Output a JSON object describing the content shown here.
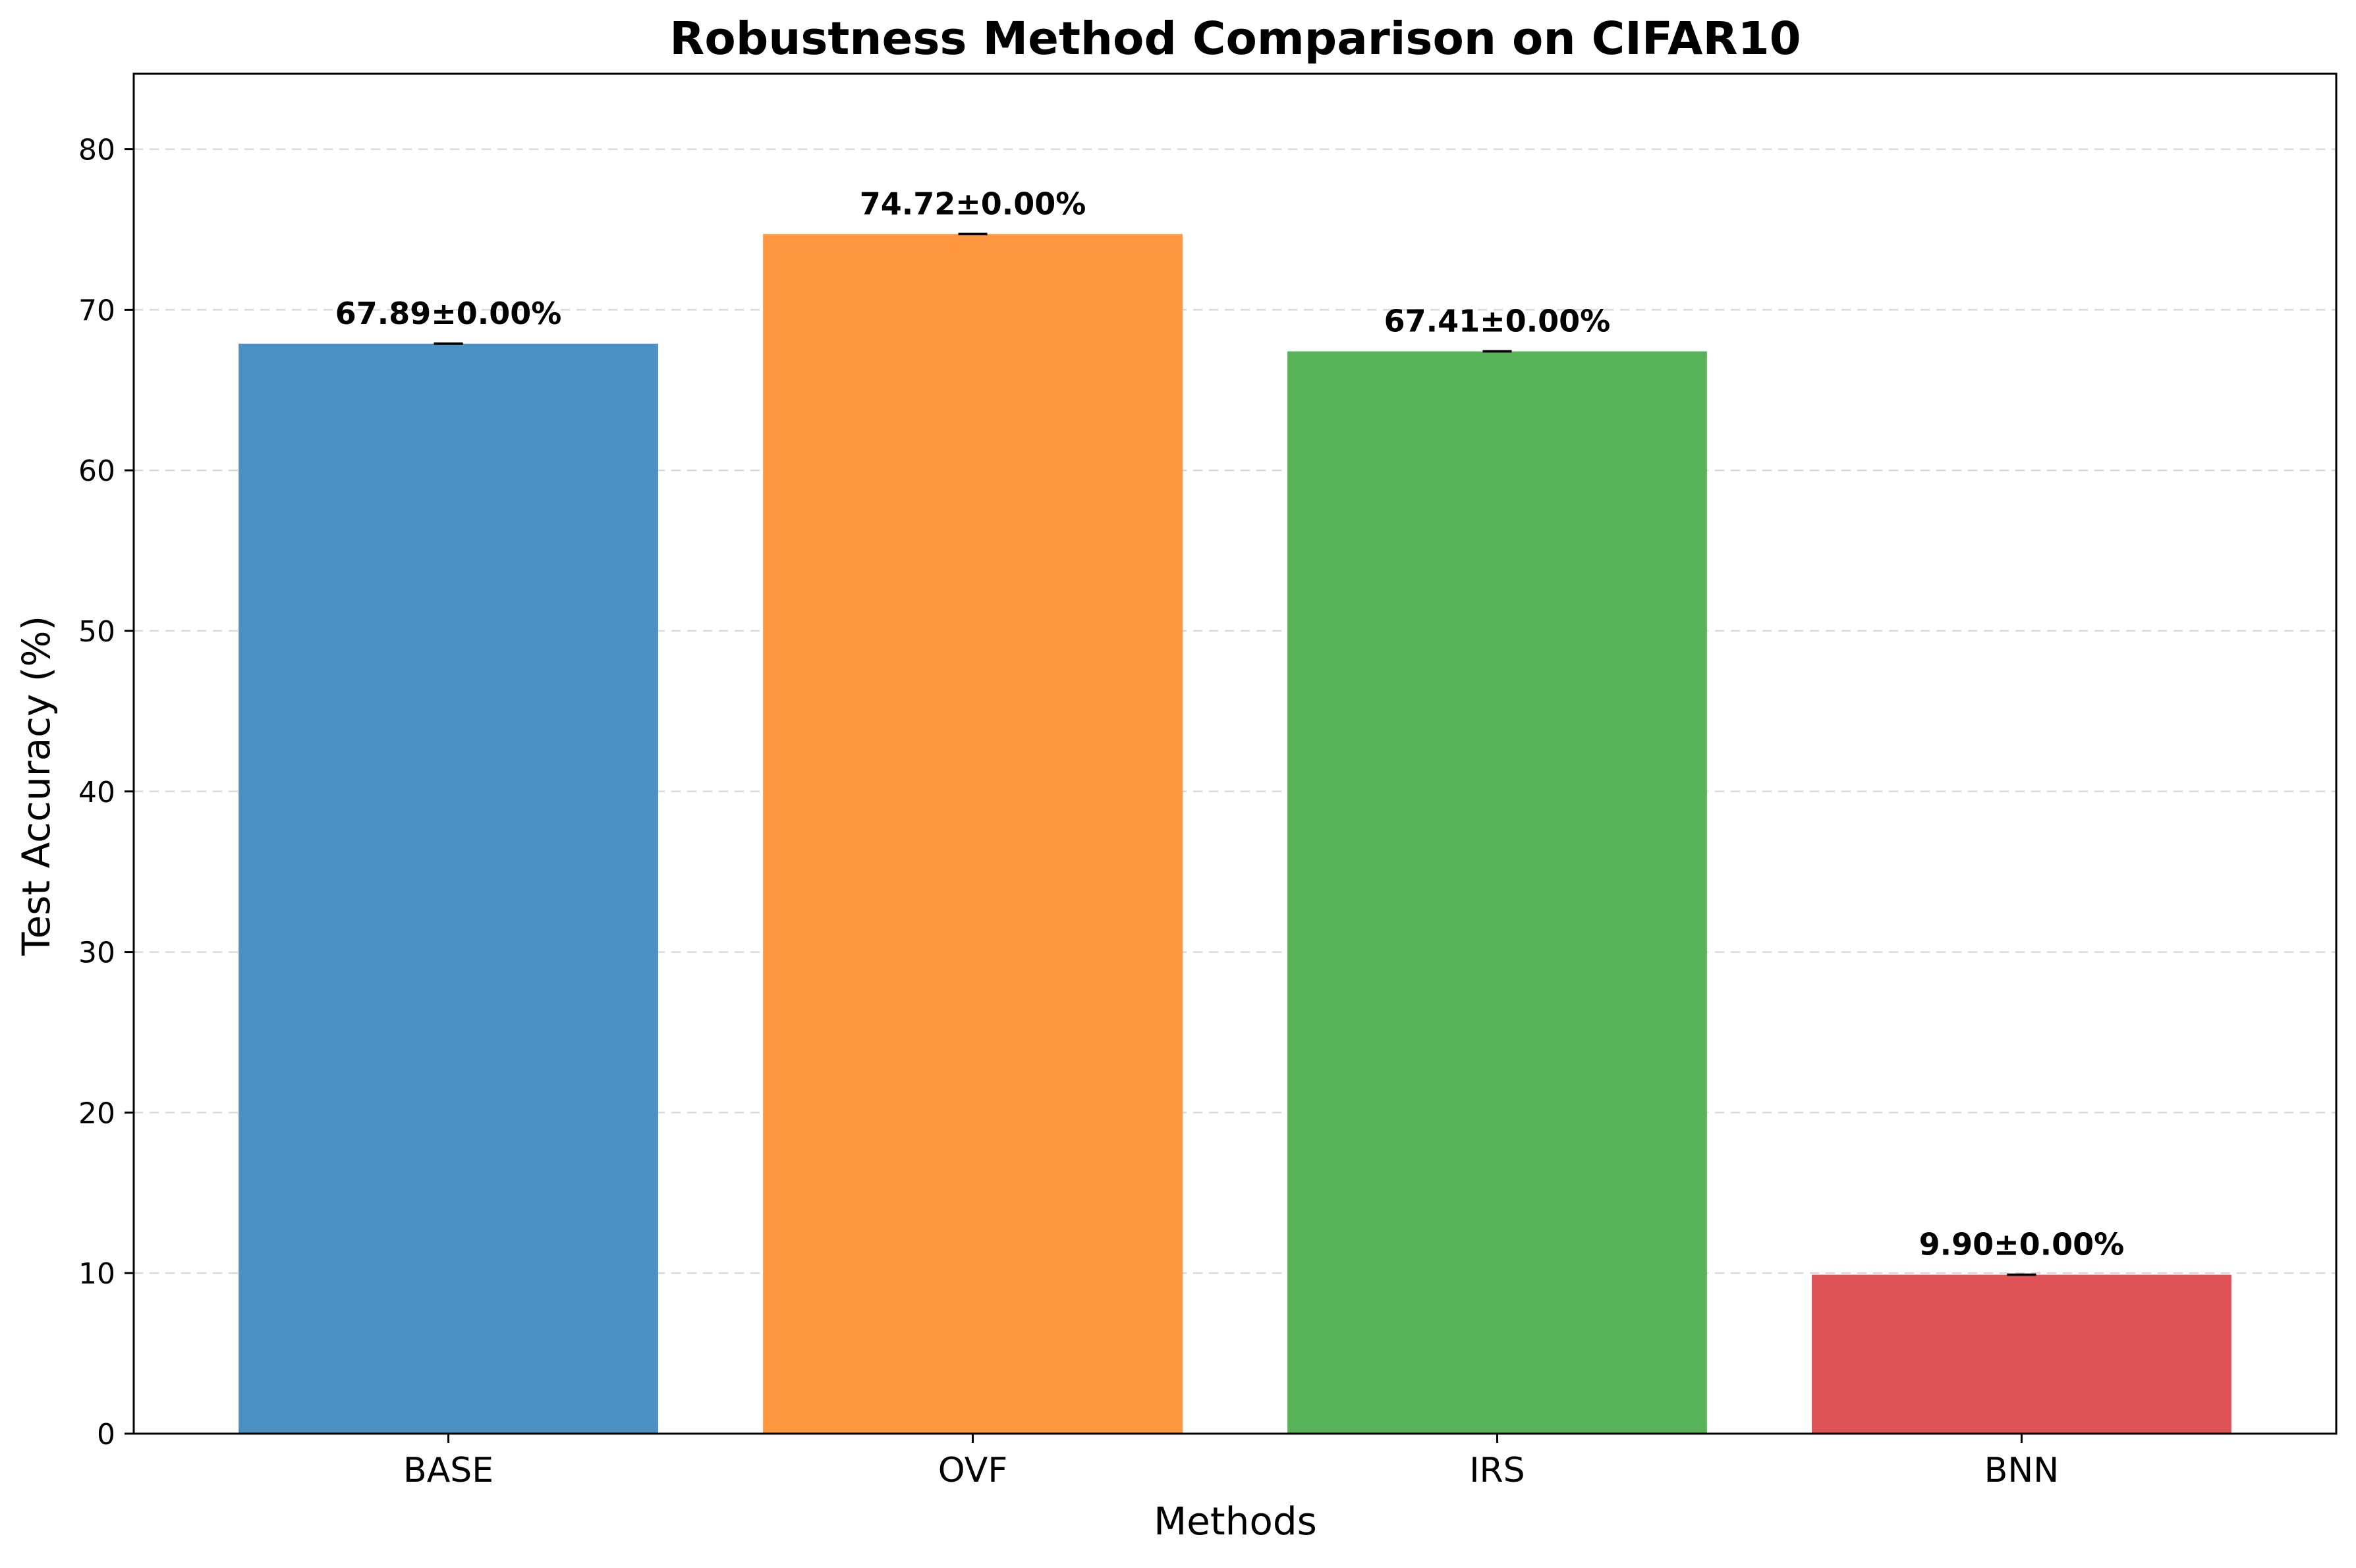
{
  "chart_data": {
    "type": "bar",
    "title": "Robustness Method Comparison on CIFAR10",
    "xlabel": "Methods",
    "ylabel": "Test Accuracy (%)",
    "categories": [
      "BASE",
      "OVF",
      "IRS",
      "BNN"
    ],
    "values": [
      67.89,
      74.72,
      67.41,
      9.9
    ],
    "errors": [
      0.0,
      0.0,
      0.0,
      0.0
    ],
    "value_labels": [
      "67.89±0.00%",
      "74.72±0.00%",
      "67.41±0.00%",
      "9.90±0.00%"
    ],
    "colors": [
      "#4a90c2",
      "#fe9740",
      "#58b458",
      "#df5356"
    ],
    "ylim": [
      0,
      84.7
    ],
    "yticks": [
      0,
      10,
      20,
      30,
      40,
      50,
      60,
      70,
      80
    ],
    "grid": true,
    "legend": "none"
  }
}
